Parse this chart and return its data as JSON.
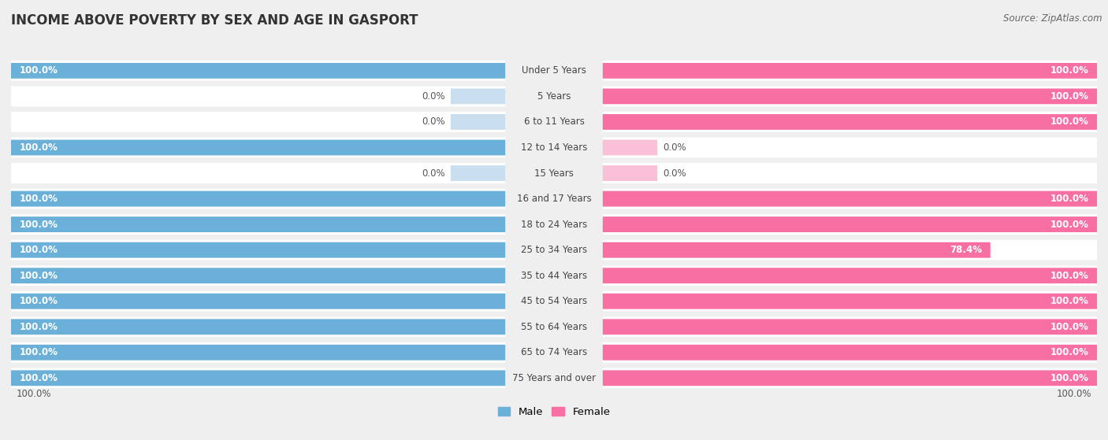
{
  "title": "INCOME ABOVE POVERTY BY SEX AND AGE IN GASPORT",
  "source": "Source: ZipAtlas.com",
  "categories": [
    "Under 5 Years",
    "5 Years",
    "6 to 11 Years",
    "12 to 14 Years",
    "15 Years",
    "16 and 17 Years",
    "18 to 24 Years",
    "25 to 34 Years",
    "35 to 44 Years",
    "45 to 54 Years",
    "55 to 64 Years",
    "65 to 74 Years",
    "75 Years and over"
  ],
  "male_values": [
    100.0,
    0.0,
    0.0,
    100.0,
    0.0,
    100.0,
    100.0,
    100.0,
    100.0,
    100.0,
    100.0,
    100.0,
    100.0
  ],
  "female_values": [
    100.0,
    100.0,
    100.0,
    0.0,
    0.0,
    100.0,
    100.0,
    78.4,
    100.0,
    100.0,
    100.0,
    100.0,
    100.0
  ],
  "male_color": "#6ab0d8",
  "female_color": "#f76fa3",
  "male_color_zero": "#c9dff0",
  "female_color_zero": "#f9c0d8",
  "bg_color": "#efefef",
  "row_bg": "#ffffff",
  "title_color": "#333333",
  "label_color": "#444444",
  "value_color_on_bar": "#ffffff",
  "value_color_outside": "#555555",
  "title_fontsize": 12,
  "label_fontsize": 8.5,
  "value_fontsize": 8.5,
  "source_fontsize": 8.5
}
